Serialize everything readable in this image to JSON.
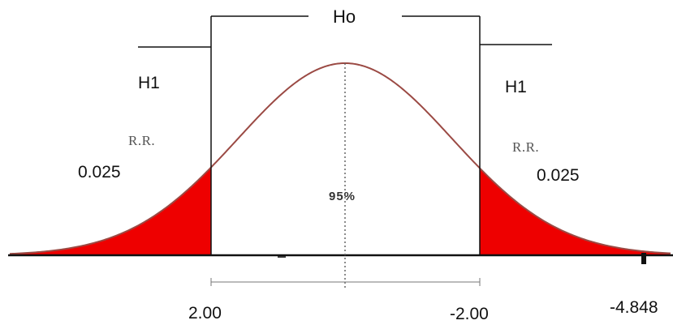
{
  "diagram": {
    "null_hypothesis_label": "Ho",
    "alt_hypothesis_left_label": "H1",
    "alt_hypothesis_right_label": "H1",
    "rejection_left_label": "R.R.",
    "rejection_right_label": "R.R.",
    "alpha_left": "0.025",
    "alpha_right": "0.025",
    "center_percent": "95%",
    "critical_left": "2.00",
    "critical_right": "-2.00",
    "test_statistic": "-4.848",
    "colors": {
      "curve": "#9b4a44",
      "rejection_fill": "#ee0000",
      "lines": "#111111"
    }
  }
}
